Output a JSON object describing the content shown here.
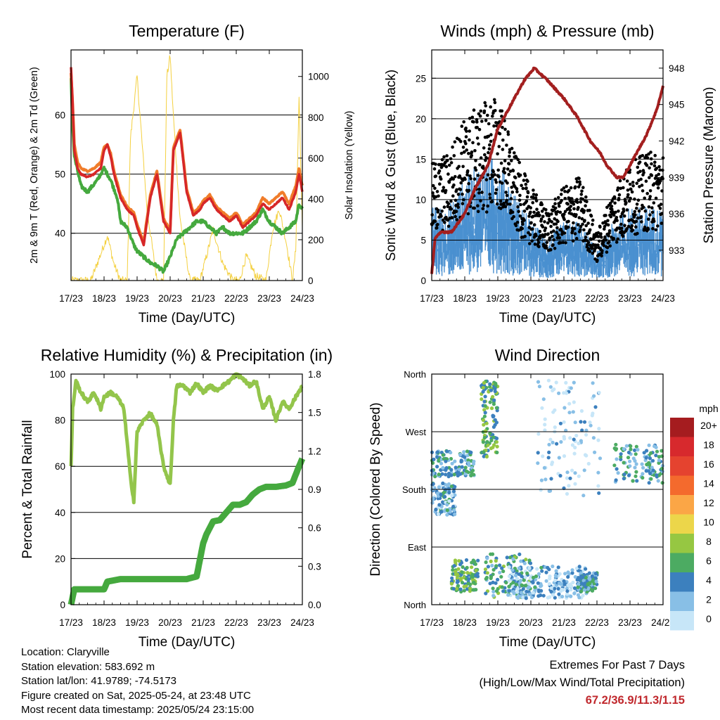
{
  "chart_data": [
    {
      "type": "line",
      "title": "Temperature (F)",
      "xlabel": "Time (Day/UTC)",
      "ylabel": "2m & 9m T (Red, Orange) & 2m Td (Green)",
      "y2label": "Solar Insolation (Yellow)",
      "x_ticks": [
        "17/23",
        "18/23",
        "19/23",
        "20/23",
        "21/23",
        "22/23",
        "23/23",
        "24/23"
      ],
      "ylim": [
        32,
        71
      ],
      "y_ticks": [
        40,
        50,
        60
      ],
      "y2lim": [
        0,
        1130
      ],
      "y2_ticks": [
        0,
        200,
        400,
        600,
        800,
        1000
      ],
      "grid_y": true,
      "series": [
        {
          "color": "#d62728",
          "x": [
            0,
            0.05,
            0.1,
            0.2,
            0.3,
            0.5,
            0.7,
            0.9,
            1.0,
            1.1,
            1.2,
            1.3,
            1.5,
            1.7,
            1.9,
            2.0,
            2.2,
            2.4,
            2.6,
            2.8,
            3.0,
            3.1,
            3.3,
            3.5,
            3.7,
            3.9,
            4.0,
            4.2,
            4.4,
            4.6,
            4.8,
            5.0,
            5.2,
            5.4,
            5.6,
            5.8,
            6.0,
            6.2,
            6.4,
            6.6,
            6.8,
            6.9,
            7.0
          ],
          "y": [
            68,
            62,
            54,
            51,
            50,
            49.5,
            50,
            51,
            54,
            55,
            53,
            50,
            46,
            44,
            43,
            41,
            38,
            46,
            50,
            42,
            40,
            54,
            57,
            47,
            43,
            44,
            45,
            46,
            44,
            43,
            42,
            43,
            41,
            42,
            43,
            45,
            44,
            45,
            46,
            44,
            47,
            50,
            47
          ]
        },
        {
          "color": "#f07c2a",
          "x": [
            0,
            0.05,
            0.1,
            0.2,
            0.3,
            0.5,
            0.7,
            0.9,
            1.0,
            1.1,
            1.2,
            1.3,
            1.5,
            1.7,
            1.9,
            2.0,
            2.2,
            2.4,
            2.6,
            2.8,
            3.0,
            3.1,
            3.3,
            3.5,
            3.7,
            3.9,
            4.0,
            4.2,
            4.4,
            4.6,
            4.8,
            5.0,
            5.2,
            5.4,
            5.6,
            5.8,
            6.0,
            6.2,
            6.4,
            6.6,
            6.8,
            6.9,
            7.0
          ],
          "y": [
            67,
            62,
            55,
            52,
            51,
            50.5,
            51,
            52,
            54.5,
            55,
            53.5,
            50.5,
            46.5,
            44.5,
            43.5,
            41.5,
            38.5,
            46.5,
            50.5,
            42.5,
            40.5,
            54.5,
            57.5,
            47.5,
            43.5,
            44.5,
            45.5,
            46.5,
            44.5,
            43.5,
            42.5,
            43.5,
            41.5,
            42.5,
            43.5,
            46,
            45,
            46,
            47,
            45,
            48,
            51,
            48
          ]
        },
        {
          "color": "#45a93e",
          "x": [
            0,
            0.05,
            0.1,
            0.3,
            0.5,
            0.8,
            1.0,
            1.2,
            1.4,
            1.5,
            1.7,
            1.9,
            2.0,
            2.2,
            2.4,
            2.6,
            2.8,
            3.0,
            3.2,
            3.4,
            3.6,
            3.8,
            4.0,
            4.2,
            4.4,
            4.6,
            4.8,
            5.0,
            5.2,
            5.4,
            5.6,
            5.8,
            6.0,
            6.2,
            6.4,
            6.6,
            6.8,
            6.9,
            7.0
          ],
          "y": [
            66,
            58,
            53,
            48,
            47,
            49,
            51,
            49,
            46,
            42,
            41,
            38,
            37,
            36,
            35,
            34.5,
            33.5,
            36,
            39,
            40,
            41,
            42,
            42,
            41,
            40,
            41,
            40,
            40,
            40,
            41,
            42,
            44,
            42,
            41,
            40,
            41,
            42,
            45,
            44
          ]
        },
        {
          "color": "#f4d03f",
          "axis": "y2",
          "x": [
            0,
            0.3,
            0.6,
            0.9,
            1.1,
            1.3,
            1.5,
            1.7,
            1.8,
            2.0,
            2.3,
            2.6,
            2.8,
            2.9,
            3.0,
            3.1,
            3.3,
            3.6,
            3.9,
            4.1,
            4.3,
            4.6,
            4.9,
            5.1,
            5.3,
            5.6,
            5.9,
            6.1,
            6.3,
            6.5,
            6.7,
            6.8,
            6.9,
            7.0
          ],
          "y": [
            0,
            0,
            0,
            130,
            220,
            80,
            0,
            0,
            700,
            1000,
            350,
            0,
            0,
            1000,
            1100,
            800,
            300,
            0,
            0,
            120,
            250,
            80,
            0,
            0,
            120,
            20,
            0,
            250,
            350,
            200,
            0,
            150,
            900,
            250
          ]
        }
      ]
    },
    {
      "type": "scatter",
      "title": "Winds (mph) & Pressure (mb)",
      "xlabel": "Time (Day/UTC)",
      "ylabel": "Sonic Wind & Gust (Blue, Black)",
      "y2label": "Station Pressure (Maroon)",
      "x_ticks": [
        "17/23",
        "18/23",
        "19/23",
        "20/23",
        "21/23",
        "22/23",
        "23/23",
        "24/23"
      ],
      "ylim": [
        0,
        28.5
      ],
      "y_ticks": [
        0,
        5,
        10,
        15,
        20,
        25
      ],
      "y2lim": [
        930.5,
        949.5
      ],
      "y2_ticks": [
        933,
        936,
        939,
        942,
        945,
        948
      ],
      "grid_y": true,
      "series": [
        {
          "color": "#4a90d0",
          "x": [
            0,
            0.5,
            1,
            1.5,
            2,
            2.5,
            3,
            3.5,
            4,
            4.5,
            5,
            5.5,
            6,
            6.5,
            7
          ],
          "y": [
            5,
            5,
            7,
            8,
            8.5,
            6,
            4,
            3,
            4,
            4,
            2,
            4,
            5,
            5,
            5
          ]
        },
        {
          "color": "#000000",
          "x": [
            0,
            0.5,
            1,
            1.5,
            2,
            2.5,
            3,
            3.5,
            4,
            4.5,
            5,
            5.5,
            6,
            6.5,
            7
          ],
          "y": [
            10,
            11,
            14,
            15,
            16,
            11,
            8,
            6,
            8,
            9,
            4,
            8,
            10,
            11,
            11
          ]
        },
        {
          "color": "#a31f1f",
          "axis": "y2",
          "x": [
            0,
            0.1,
            0.3,
            0.6,
            1.0,
            1.3,
            1.7,
            2.0,
            2.4,
            2.8,
            3.1,
            3.5,
            4.0,
            4.4,
            4.8,
            5.1,
            5.3,
            5.6,
            5.8,
            6.0,
            6.2,
            6.5,
            6.8,
            7.0
          ],
          "y": [
            931,
            934,
            934.5,
            934.5,
            936,
            938,
            940,
            943,
            945,
            947,
            948,
            947,
            945.5,
            944,
            942,
            941,
            940,
            939,
            939,
            940,
            941,
            942.5,
            944.5,
            946.5
          ]
        }
      ]
    },
    {
      "type": "line",
      "title": "Relative Humidity (%) & Precipitation (in)",
      "xlabel": "Time (Day/UTC)",
      "ylabel": "Percent & Total Rainfall",
      "x_ticks": [
        "17/23",
        "18/23",
        "19/23",
        "20/23",
        "21/23",
        "22/23",
        "23/23",
        "24/23"
      ],
      "ylim": [
        0,
        100
      ],
      "y_ticks": [
        0,
        20,
        40,
        60,
        80,
        100
      ],
      "y2lim": [
        0,
        1.8
      ],
      "y2_ticks": [
        "0.0",
        "0.3",
        "0.6",
        "0.9",
        "1.2",
        "1.5",
        "1.8"
      ],
      "grid_y": true,
      "series": [
        {
          "color": "#93c54b",
          "x": [
            0,
            0.05,
            0.15,
            0.3,
            0.5,
            0.7,
            0.9,
            1.0,
            1.2,
            1.4,
            1.6,
            1.8,
            1.9,
            2.0,
            2.2,
            2.4,
            2.6,
            2.8,
            3.0,
            3.1,
            3.2,
            3.4,
            3.6,
            3.8,
            4.0,
            4.2,
            4.4,
            4.6,
            4.8,
            5.0,
            5.2,
            5.4,
            5.6,
            5.8,
            6.0,
            6.2,
            6.4,
            6.6,
            6.8,
            7.0
          ],
          "y": [
            60,
            85,
            97,
            92,
            88,
            92,
            85,
            90,
            92,
            90,
            85,
            55,
            45,
            75,
            80,
            83,
            78,
            60,
            52,
            80,
            95,
            95,
            92,
            96,
            92,
            95,
            93,
            95,
            97,
            100,
            98,
            95,
            97,
            85,
            90,
            80,
            88,
            85,
            90,
            95
          ]
        },
        {
          "color": "#45a93e",
          "axis": "y2",
          "x": [
            0,
            0.1,
            0.5,
            1.0,
            1.1,
            1.5,
            2.0,
            2.5,
            3.0,
            3.5,
            3.8,
            3.9,
            4.0,
            4.1,
            4.3,
            4.5,
            4.7,
            4.9,
            5.1,
            5.3,
            5.5,
            5.7,
            5.9,
            6.0,
            6.2,
            6.5,
            6.7,
            6.9,
            7.0
          ],
          "y": [
            0,
            0.12,
            0.12,
            0.12,
            0.18,
            0.2,
            0.2,
            0.2,
            0.2,
            0.2,
            0.22,
            0.35,
            0.48,
            0.55,
            0.65,
            0.66,
            0.72,
            0.78,
            0.78,
            0.8,
            0.86,
            0.9,
            0.92,
            0.92,
            0.92,
            0.93,
            0.95,
            1.08,
            1.14
          ]
        }
      ]
    },
    {
      "type": "scatter",
      "title": "Wind Direction",
      "xlabel": "Time (Day/UTC)",
      "ylabel": "Direction (Colored By Speed)",
      "x_ticks": [
        "17/23",
        "18/23",
        "19/23",
        "20/23",
        "21/23",
        "22/23",
        "23/23",
        "24/23"
      ],
      "ylim": [
        0,
        360
      ],
      "y_ticks": [
        "North",
        "East",
        "South",
        "West",
        "North"
      ],
      "grid_y": true,
      "colorbar": {
        "title": "mph",
        "labels": [
          "20+",
          "18",
          "16",
          "14",
          "12",
          "10",
          "8",
          "6",
          "4",
          "2",
          "0"
        ],
        "colors": [
          "#a51c1f",
          "#d7292d",
          "#e5432f",
          "#f46a2d",
          "#fba646",
          "#ecd64a",
          "#96c742",
          "#4cab62",
          "#3c80be",
          "#88bfe6",
          "#c7e6f8"
        ]
      },
      "clusters": [
        {
          "x": [
            0.0,
            0.7
          ],
          "dir": [
            140,
            190
          ],
          "speed": 4
        },
        {
          "x": [
            0.0,
            1.3
          ],
          "dir": [
            200,
            240
          ],
          "speed": 5
        },
        {
          "x": [
            0.6,
            1.4
          ],
          "dir": [
            20,
            70
          ],
          "speed": 7
        },
        {
          "x": [
            1.5,
            2.0
          ],
          "dir": [
            230,
            350
          ],
          "speed": 7
        },
        {
          "x": [
            1.6,
            3.0
          ],
          "dir": [
            10,
            80
          ],
          "speed": 6
        },
        {
          "x": [
            2.3,
            3.4
          ],
          "dir": [
            10,
            60
          ],
          "speed": 4
        },
        {
          "x": [
            3.4,
            4.7
          ],
          "dir": [
            10,
            60
          ],
          "speed": 3
        },
        {
          "x": [
            4.4,
            5.0
          ],
          "dir": [
            20,
            50
          ],
          "speed": 5
        },
        {
          "x": [
            5.5,
            7.0
          ],
          "dir": [
            190,
            250
          ],
          "speed": 5
        },
        {
          "x": [
            3.2,
            5.1
          ],
          "dir": [
            170,
            350
          ],
          "speed": 2
        }
      ]
    }
  ],
  "footer": {
    "location": "Location: Claryville",
    "elevation": "Station elevation: 583.692 m",
    "latlon": "Station lat/lon: 41.9789; -74.5173",
    "created": "Figure created on Sat, 2025-05-24, at 23:48 UTC",
    "timestamp": "Most recent data timestamp: 2025/05/24 23:15:00"
  },
  "extremes": {
    "title": "Extremes For Past 7 Days",
    "subtitle": "(High/Low/Max Wind/Total Precipitation)",
    "values": "67.2/36.9/11.3/1.15"
  }
}
